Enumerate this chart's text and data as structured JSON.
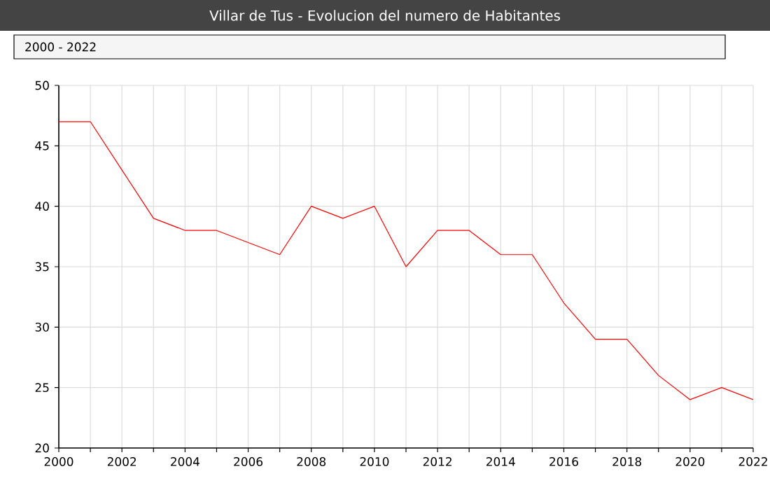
{
  "chart_data": {
    "type": "line",
    "title": "Villar de Tus - Evolucion del numero de Habitantes",
    "annotations": [
      "2000 - 2022"
    ],
    "x": [
      2000,
      2001,
      2002,
      2003,
      2004,
      2005,
      2006,
      2007,
      2008,
      2009,
      2010,
      2011,
      2012,
      2013,
      2014,
      2015,
      2016,
      2017,
      2018,
      2019,
      2020,
      2021,
      2022
    ],
    "series": [
      {
        "color": "#ff0000",
        "values": [
          47,
          47,
          43,
          39,
          38,
          38,
          37,
          36,
          40,
          39,
          40,
          35,
          38,
          38,
          36,
          36,
          32,
          29,
          29,
          26,
          24,
          25,
          24
        ]
      }
    ],
    "xlim": [
      2000,
      2022
    ],
    "xticks": [
      2000,
      {
        "value": 2001,
        "label": null
      },
      2002,
      {
        "value": 2003,
        "label": null
      },
      2004,
      {
        "value": 2005,
        "label": null
      },
      2006,
      {
        "value": 2007,
        "label": null
      },
      2008,
      {
        "value": 2009,
        "label": null
      },
      2010,
      {
        "value": 2011,
        "label": null
      },
      2012,
      {
        "value": 2013,
        "label": null
      },
      2014,
      {
        "value": 2015,
        "label": null
      },
      2016,
      {
        "value": 2017,
        "label": null
      },
      2018,
      {
        "value": 2019,
        "label": null
      },
      2020,
      {
        "value": 2021,
        "label": null
      },
      2022
    ],
    "ylim": [
      20,
      50
    ],
    "yticks": [
      20,
      25,
      30,
      35,
      40,
      45,
      50
    ],
    "grid": true,
    "marker": "none",
    "line_style": "solid",
    "legend": false
  }
}
